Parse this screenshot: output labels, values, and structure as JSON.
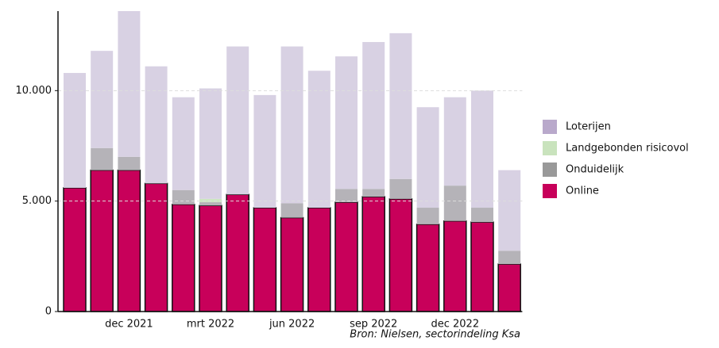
{
  "chart_data": {
    "type": "stacked_bar",
    "categories": [
      null,
      null,
      "dec 2021",
      null,
      null,
      "mrt 2022",
      null,
      null,
      "jun 2022",
      null,
      null,
      "sep 2022",
      null,
      null,
      "dec 2022",
      null,
      null
    ],
    "series": [
      {
        "name": "Loterijen",
        "color": "#d8d1e3",
        "legend_color": "#b9a9cb",
        "values": [
          5200,
          4400,
          7000,
          5300,
          4200,
          5000,
          6700,
          5100,
          7100,
          6200,
          6000,
          6650,
          6600,
          4550,
          4000,
          5300,
          3650
        ]
      },
      {
        "name": "Landgebonden risicovol",
        "color": "#cde6c2",
        "legend_color": "#c9e3bd",
        "values": [
          0,
          0,
          0,
          0,
          0,
          150,
          0,
          0,
          0,
          0,
          0,
          0,
          0,
          0,
          0,
          0,
          0
        ]
      },
      {
        "name": "Onduidelijk",
        "color": "#b5b3b8",
        "legend_color": "#999999",
        "values": [
          0,
          1000,
          600,
          0,
          650,
          150,
          0,
          0,
          650,
          0,
          600,
          350,
          900,
          750,
          1600,
          650,
          600
        ]
      },
      {
        "name": "Online",
        "color": "#c8005a",
        "legend_color": "#c8005a",
        "values": [
          5600,
          6400,
          6400,
          5800,
          4850,
          4800,
          5300,
          4700,
          4250,
          4700,
          4950,
          5200,
          5100,
          3950,
          4100,
          4050,
          2150
        ]
      }
    ],
    "ylim": [
      0,
      13600
    ],
    "yticks": [
      0,
      {
        "value": 5000,
        "label": "5.000"
      },
      {
        "value": 10000,
        "label": "10.000"
      }
    ],
    "grid": true,
    "legend": "right",
    "source": "Bron: Nielsen, sectorindeling Ksa"
  }
}
